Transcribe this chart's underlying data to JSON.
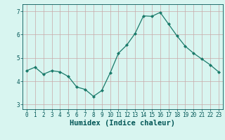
{
  "x": [
    0,
    1,
    2,
    3,
    4,
    5,
    6,
    7,
    8,
    9,
    10,
    11,
    12,
    13,
    14,
    15,
    16,
    17,
    18,
    19,
    20,
    21,
    22,
    23
  ],
  "y": [
    4.45,
    4.6,
    4.3,
    4.45,
    4.4,
    4.2,
    3.75,
    3.65,
    3.35,
    3.6,
    4.35,
    5.2,
    5.55,
    6.05,
    6.8,
    6.78,
    6.95,
    6.45,
    5.95,
    5.5,
    5.2,
    4.95,
    4.7,
    4.4
  ],
  "line_color": "#1a7a6a",
  "marker": "D",
  "marker_size": 2,
  "bg_color": "#d8f5f0",
  "grid_color": "#c8a8a8",
  "xlabel": "Humidex (Indice chaleur)",
  "text_color": "#005555",
  "ylim": [
    2.8,
    7.3
  ],
  "xlim": [
    -0.5,
    23.5
  ],
  "yticks": [
    3,
    4,
    5,
    6,
    7
  ],
  "xticks": [
    0,
    1,
    2,
    3,
    4,
    5,
    6,
    7,
    8,
    9,
    10,
    11,
    12,
    13,
    14,
    15,
    16,
    17,
    18,
    19,
    20,
    21,
    22,
    23
  ],
  "tick_label_fontsize": 5.5,
  "xlabel_fontsize": 7.5
}
